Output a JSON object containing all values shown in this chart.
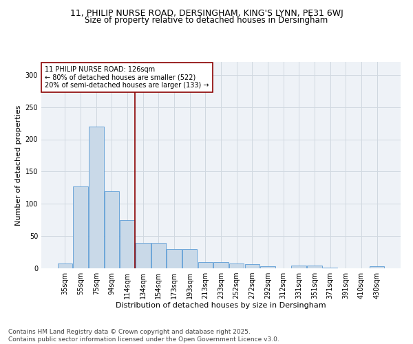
{
  "title_line1": "11, PHILIP NURSE ROAD, DERSINGHAM, KING'S LYNN, PE31 6WJ",
  "title_line2": "Size of property relative to detached houses in Dersingham",
  "xlabel": "Distribution of detached houses by size in Dersingham",
  "ylabel": "Number of detached properties",
  "categories": [
    "35sqm",
    "55sqm",
    "75sqm",
    "94sqm",
    "114sqm",
    "134sqm",
    "154sqm",
    "173sqm",
    "193sqm",
    "213sqm",
    "233sqm",
    "252sqm",
    "272sqm",
    "292sqm",
    "312sqm",
    "331sqm",
    "351sqm",
    "371sqm",
    "391sqm",
    "410sqm",
    "430sqm"
  ],
  "values": [
    8,
    127,
    220,
    120,
    75,
    40,
    40,
    30,
    30,
    10,
    10,
    7,
    6,
    3,
    0,
    4,
    4,
    1,
    0,
    0,
    3
  ],
  "bar_color": "#c9d9e8",
  "bar_edge_color": "#5b9bd5",
  "vline_color": "#8b0000",
  "vline_x": 4.5,
  "annotation_text": "11 PHILIP NURSE ROAD: 126sqm\n← 80% of detached houses are smaller (522)\n20% of semi-detached houses are larger (133) →",
  "annotation_box_color": "white",
  "annotation_box_edge_color": "#8b0000",
  "ylim": [
    0,
    320
  ],
  "yticks": [
    0,
    50,
    100,
    150,
    200,
    250,
    300
  ],
  "grid_color": "#d0d8e0",
  "bg_color": "#eef2f7",
  "footnote": "Contains HM Land Registry data © Crown copyright and database right 2025.\nContains public sector information licensed under the Open Government Licence v3.0.",
  "title_fontsize": 9,
  "subtitle_fontsize": 8.5,
  "axis_label_fontsize": 8,
  "tick_fontsize": 7,
  "annotation_fontsize": 7,
  "footnote_fontsize": 6.5
}
